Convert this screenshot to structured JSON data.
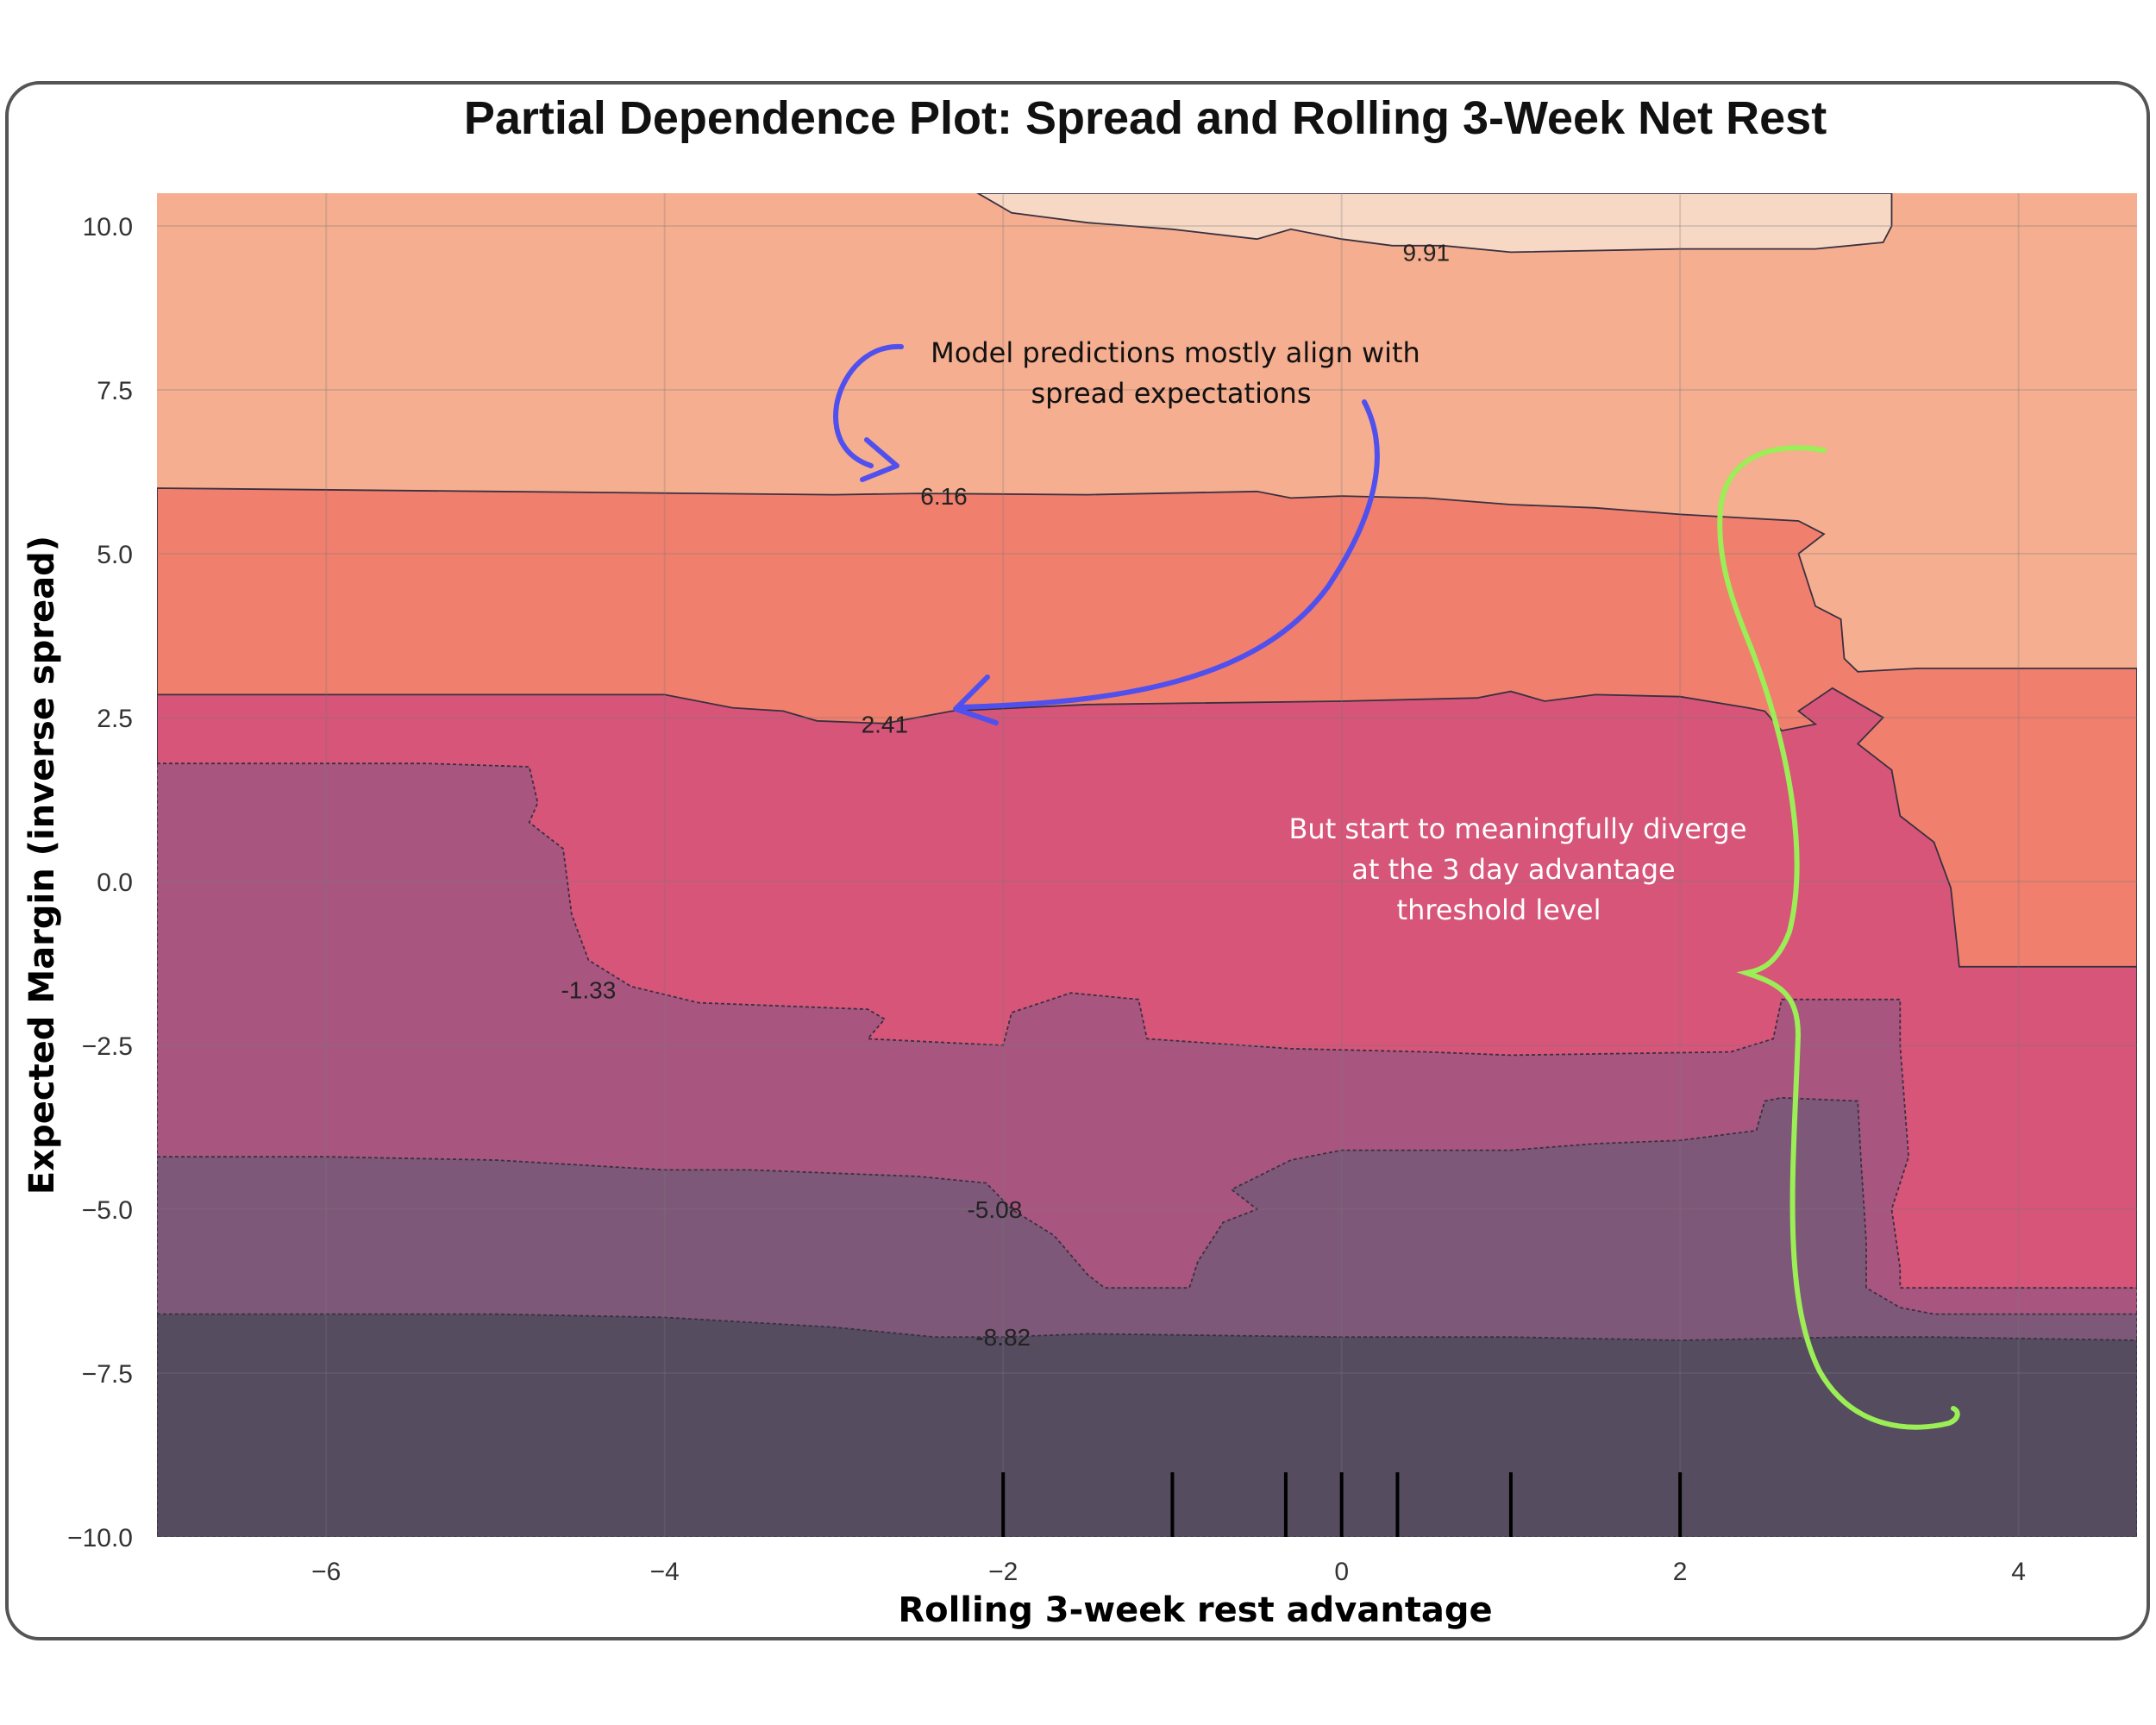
{
  "chart_data": {
    "type": "heatmap",
    "title": "Partial Dependence Plot: Spread and Rolling 3-Week Net Rest",
    "xlabel": "Rolling 3-week rest advantage",
    "ylabel": "Expected Margin (inverse spread)",
    "xlim": [
      -7,
      4.7
    ],
    "ylim": [
      -10,
      10.5
    ],
    "x_ticks": [
      -6,
      -4,
      -2,
      0,
      2,
      4
    ],
    "x_tick_labels": [
      "−6",
      "−4",
      "−2",
      "0",
      "2",
      "4"
    ],
    "y_ticks": [
      10,
      7.5,
      5,
      2.5,
      0,
      -2.5,
      -5,
      -7.5,
      -10
    ],
    "y_tick_labels": [
      "10.0",
      "7.5",
      "5.0",
      "2.5",
      "0.0",
      "−2.5",
      "−5.0",
      "−7.5",
      "−10.0"
    ],
    "grid": true,
    "contour_levels": [
      {
        "label": "9.91",
        "value": 9.91
      },
      {
        "label": "6.16",
        "value": 6.16
      },
      {
        "label": "2.41",
        "value": 2.41
      },
      {
        "label": "-1.33",
        "value": -1.33
      },
      {
        "label": "-5.08",
        "value": -5.08
      },
      {
        "label": "-8.82",
        "value": -8.82
      }
    ],
    "band_colors": [
      "#f7d8c4",
      "#f5ae8f",
      "#f07f6e",
      "#d75579",
      "#a85680",
      "#7e5879",
      "#554c60"
    ],
    "rug_x": [
      -2,
      -1,
      -0.33,
      0,
      0.33,
      1,
      2
    ],
    "bands": [
      {
        "color": "#f5ae8f",
        "points": [
          [
            -7,
            10.5
          ],
          [
            4.7,
            10.5
          ],
          [
            4.7,
            -10
          ],
          [
            -7,
            -10
          ]
        ]
      },
      {
        "color": "#f7d8c4",
        "points": [
          [
            -2.15,
            10.5
          ],
          [
            -1.95,
            10.2
          ],
          [
            -1.5,
            10.05
          ],
          [
            -1,
            9.95
          ],
          [
            -0.5,
            9.8
          ],
          [
            -0.3,
            9.95
          ],
          [
            0,
            9.8
          ],
          [
            0.3,
            9.7
          ],
          [
            0.6,
            9.7
          ],
          [
            1,
            9.6
          ],
          [
            2,
            9.65
          ],
          [
            2.8,
            9.65
          ],
          [
            3.2,
            9.75
          ],
          [
            3.25,
            10.0
          ],
          [
            3.25,
            10.5
          ]
        ]
      },
      {
        "color": "#f07f6e",
        "points": [
          [
            -7,
            6.0
          ],
          [
            -5,
            5.95
          ],
          [
            -3,
            5.9
          ],
          [
            -2.5,
            5.92
          ],
          [
            -1.5,
            5.9
          ],
          [
            -0.5,
            5.95
          ],
          [
            -0.3,
            5.85
          ],
          [
            0,
            5.88
          ],
          [
            0.5,
            5.85
          ],
          [
            1,
            5.75
          ],
          [
            1.5,
            5.7
          ],
          [
            2,
            5.6
          ],
          [
            2.7,
            5.5
          ],
          [
            2.85,
            5.3
          ],
          [
            2.7,
            5.0
          ],
          [
            2.8,
            4.2
          ],
          [
            2.95,
            4.0
          ],
          [
            2.97,
            3.4
          ],
          [
            3.05,
            3.2
          ],
          [
            3.4,
            3.25
          ],
          [
            4.7,
            3.25
          ],
          [
            4.7,
            -10
          ],
          [
            -7,
            -10
          ]
        ]
      },
      {
        "color": "#d75579",
        "points": [
          [
            -7,
            2.85
          ],
          [
            -4,
            2.85
          ],
          [
            -3.6,
            2.65
          ],
          [
            -3.3,
            2.6
          ],
          [
            -3.1,
            2.45
          ],
          [
            -2.7,
            2.41
          ],
          [
            -2.3,
            2.6
          ],
          [
            -1.5,
            2.7
          ],
          [
            0,
            2.75
          ],
          [
            0.8,
            2.8
          ],
          [
            1,
            2.9
          ],
          [
            1.2,
            2.75
          ],
          [
            1.5,
            2.85
          ],
          [
            2,
            2.82
          ],
          [
            2.4,
            2.65
          ],
          [
            2.5,
            2.6
          ],
          [
            2.6,
            2.3
          ],
          [
            2.8,
            2.4
          ],
          [
            2.7,
            2.6
          ],
          [
            2.9,
            2.95
          ],
          [
            3.2,
            2.5
          ],
          [
            3.05,
            2.1
          ],
          [
            3.25,
            1.7
          ],
          [
            3.3,
            1.0
          ],
          [
            3.5,
            0.6
          ],
          [
            3.6,
            -0.1
          ],
          [
            3.65,
            -1.3
          ],
          [
            4.7,
            -1.3
          ],
          [
            4.7,
            -10
          ],
          [
            -7,
            -10
          ]
        ]
      },
      {
        "color": "#a85680",
        "points": [
          [
            -7,
            1.8
          ],
          [
            -5.4,
            1.8
          ],
          [
            -4.8,
            1.75
          ],
          [
            -4.75,
            1.2
          ],
          [
            -4.8,
            0.9
          ],
          [
            -4.6,
            0.5
          ],
          [
            -4.55,
            -0.5
          ],
          [
            -4.45,
            -1.2
          ],
          [
            -4.2,
            -1.6
          ],
          [
            -3.8,
            -1.85
          ],
          [
            -2.8,
            -1.95
          ],
          [
            -2.7,
            -2.1
          ],
          [
            -2.8,
            -2.4
          ],
          [
            -2,
            -2.5
          ],
          [
            -1.95,
            -2.0
          ],
          [
            -1.6,
            -1.7
          ],
          [
            -1.2,
            -1.8
          ],
          [
            -1.15,
            -2.4
          ],
          [
            -0.3,
            -2.55
          ],
          [
            0.5,
            -2.6
          ],
          [
            1,
            -2.65
          ],
          [
            2.3,
            -2.6
          ],
          [
            2.55,
            -2.4
          ],
          [
            2.6,
            -1.8
          ],
          [
            3.3,
            -1.8
          ],
          [
            3.3,
            -2.5
          ],
          [
            3.35,
            -4.2
          ],
          [
            3.25,
            -5.0
          ],
          [
            3.3,
            -5.9
          ],
          [
            3.3,
            -6.2
          ],
          [
            4.7,
            -6.2
          ],
          [
            4.7,
            -10
          ],
          [
            -7,
            -10
          ]
        ]
      },
      {
        "color": "#7e5879",
        "points": [
          [
            -7,
            -4.2
          ],
          [
            -6,
            -4.2
          ],
          [
            -5,
            -4.25
          ],
          [
            -4,
            -4.4
          ],
          [
            -3.5,
            -4.4
          ],
          [
            -3,
            -4.45
          ],
          [
            -2.5,
            -4.5
          ],
          [
            -2.1,
            -4.6
          ],
          [
            -1.95,
            -5.0
          ],
          [
            -1.7,
            -5.4
          ],
          [
            -1.5,
            -6.0
          ],
          [
            -1.4,
            -6.2
          ],
          [
            -0.9,
            -6.2
          ],
          [
            -0.85,
            -5.8
          ],
          [
            -0.7,
            -5.2
          ],
          [
            -0.5,
            -5.0
          ],
          [
            -0.65,
            -4.7
          ],
          [
            -0.3,
            -4.25
          ],
          [
            0,
            -4.1
          ],
          [
            0.5,
            -4.1
          ],
          [
            1,
            -4.1
          ],
          [
            1.5,
            -4.0
          ],
          [
            2,
            -3.95
          ],
          [
            2.45,
            -3.8
          ],
          [
            2.5,
            -3.35
          ],
          [
            2.6,
            -3.3
          ],
          [
            3.05,
            -3.35
          ],
          [
            3.07,
            -4.3
          ],
          [
            3.1,
            -5.5
          ],
          [
            3.1,
            -6.2
          ],
          [
            3.3,
            -6.5
          ],
          [
            3.5,
            -6.6
          ],
          [
            4.7,
            -6.6
          ],
          [
            4.7,
            -10
          ],
          [
            -7,
            -10
          ]
        ]
      },
      {
        "color": "#554c60",
        "points": [
          [
            -7,
            -6.6
          ],
          [
            -5,
            -6.6
          ],
          [
            -4,
            -6.65
          ],
          [
            -3,
            -6.8
          ],
          [
            -2.4,
            -6.95
          ],
          [
            -2,
            -6.95
          ],
          [
            -1.5,
            -6.9
          ],
          [
            0,
            -6.95
          ],
          [
            1,
            -6.95
          ],
          [
            2,
            -7.0
          ],
          [
            3,
            -6.95
          ],
          [
            3.5,
            -6.95
          ],
          [
            4.7,
            -7.0
          ],
          [
            4.7,
            -10
          ],
          [
            -7,
            -10
          ]
        ]
      }
    ],
    "contour_label_positions": [
      {
        "label": "9.91",
        "x": 0.5,
        "y": 9.6
      },
      {
        "label": "6.16",
        "x": -2.35,
        "y": 5.88
      },
      {
        "label": "2.41",
        "x": -2.7,
        "y": 2.4
      },
      {
        "label": "-1.33",
        "x": -4.45,
        "y": -1.65
      },
      {
        "label": "-5.08",
        "x": -2.05,
        "y": -5.0
      },
      {
        "label": "-8.82",
        "x": -2.0,
        "y": -6.95
      }
    ]
  },
  "annotations": {
    "note1_line1": "Model predictions mostly align with",
    "note1_line2": "spread expectations",
    "note2_line1": "But start to meaningfully diverge",
    "note2_line2": "at the 3 day advantage",
    "note2_line3": "threshold level",
    "note1_color": "#4a4aff",
    "note2_color": "#99ee55"
  }
}
